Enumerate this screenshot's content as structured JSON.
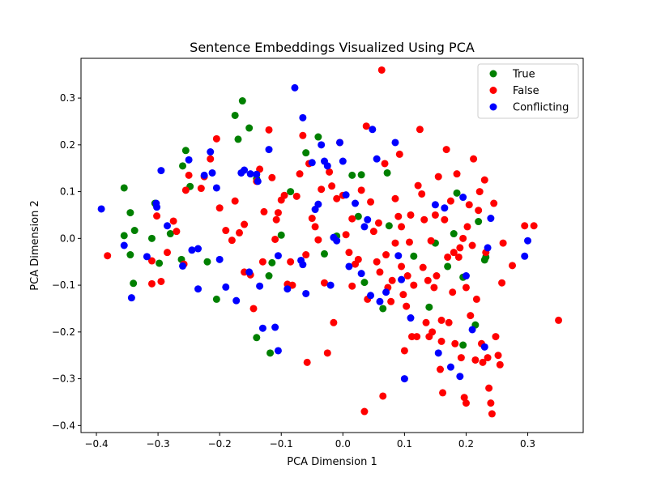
{
  "chart_data": {
    "type": "scatter",
    "title": "Sentence Embeddings Visualized Using PCA",
    "xlabel": "PCA Dimension 1",
    "ylabel": "PCA Dimension 2",
    "xlim": [
      -0.425,
      0.39
    ],
    "ylim": [
      -0.415,
      0.385
    ],
    "xticks": [
      -0.4,
      -0.3,
      -0.2,
      -0.1,
      0.0,
      0.1,
      0.2,
      0.3
    ],
    "yticks": [
      -0.4,
      -0.3,
      -0.2,
      -0.1,
      0.0,
      0.1,
      0.2,
      0.3
    ],
    "xtick_labels": [
      "−0.4",
      "−0.3",
      "−0.2",
      "−0.1",
      "0.0",
      "0.1",
      "0.2",
      "0.3"
    ],
    "ytick_labels": [
      "−0.4",
      "−0.3",
      "−0.2",
      "−0.1",
      "0.0",
      "0.1",
      "0.2",
      "0.3"
    ],
    "grid": false,
    "legend_position": "top-right",
    "series": [
      {
        "name": "True",
        "color": "#008000",
        "points": [
          [
            -0.355,
            0.108
          ],
          [
            -0.345,
            -0.035
          ],
          [
            -0.338,
            0.017
          ],
          [
            -0.34,
            -0.096
          ],
          [
            -0.345,
            0.055
          ],
          [
            -0.355,
            0.006
          ],
          [
            -0.31,
            0.0
          ],
          [
            -0.305,
            0.075
          ],
          [
            -0.298,
            -0.053
          ],
          [
            -0.28,
            0.01
          ],
          [
            -0.262,
            -0.045
          ],
          [
            -0.255,
            0.188
          ],
          [
            -0.248,
            0.111
          ],
          [
            -0.26,
            0.155
          ],
          [
            -0.22,
            -0.05
          ],
          [
            -0.205,
            -0.13
          ],
          [
            -0.175,
            0.263
          ],
          [
            -0.17,
            0.212
          ],
          [
            -0.163,
            0.294
          ],
          [
            -0.152,
            0.236
          ],
          [
            -0.14,
            0.128
          ],
          [
            -0.14,
            -0.212
          ],
          [
            -0.118,
            -0.245
          ],
          [
            -0.12,
            -0.08
          ],
          [
            -0.115,
            -0.052
          ],
          [
            -0.1,
            0.007
          ],
          [
            -0.085,
            0.1
          ],
          [
            -0.06,
            0.183
          ],
          [
            -0.04,
            0.217
          ],
          [
            -0.03,
            -0.033
          ],
          [
            -0.01,
            0.005
          ],
          [
            0.015,
            0.135
          ],
          [
            0.025,
            0.047
          ],
          [
            0.03,
            0.136
          ],
          [
            0.035,
            -0.094
          ],
          [
            0.065,
            -0.15
          ],
          [
            0.072,
            0.14
          ],
          [
            0.075,
            0.027
          ],
          [
            0.115,
            -0.038
          ],
          [
            0.14,
            -0.147
          ],
          [
            0.15,
            -0.01
          ],
          [
            0.17,
            -0.06
          ],
          [
            0.18,
            0.01
          ],
          [
            0.185,
            0.097
          ],
          [
            0.195,
            -0.083
          ],
          [
            0.195,
            -0.228
          ],
          [
            0.215,
            -0.185
          ],
          [
            0.22,
            0.036
          ],
          [
            0.232,
            -0.04
          ],
          [
            0.23,
            -0.046
          ]
        ]
      },
      {
        "name": "False",
        "color": "#ff0000",
        "points": [
          [
            -0.382,
            -0.037
          ],
          [
            -0.31,
            -0.097
          ],
          [
            -0.31,
            -0.048
          ],
          [
            -0.302,
            0.048
          ],
          [
            -0.295,
            -0.092
          ],
          [
            -0.285,
            -0.03
          ],
          [
            -0.275,
            0.037
          ],
          [
            -0.27,
            0.015
          ],
          [
            -0.258,
            -0.055
          ],
          [
            -0.255,
            0.103
          ],
          [
            -0.25,
            0.135
          ],
          [
            -0.23,
            0.107
          ],
          [
            -0.225,
            0.132
          ],
          [
            -0.215,
            0.17
          ],
          [
            -0.205,
            0.213
          ],
          [
            -0.2,
            0.065
          ],
          [
            -0.19,
            0.017
          ],
          [
            -0.18,
            -0.004
          ],
          [
            -0.175,
            0.08
          ],
          [
            -0.168,
            0.012
          ],
          [
            -0.16,
            0.03
          ],
          [
            -0.16,
            -0.072
          ],
          [
            -0.15,
            -0.078
          ],
          [
            -0.145,
            -0.15
          ],
          [
            -0.14,
            0.122
          ],
          [
            -0.135,
            0.148
          ],
          [
            -0.13,
            -0.05
          ],
          [
            -0.128,
            0.057
          ],
          [
            -0.12,
            0.232
          ],
          [
            -0.115,
            0.13
          ],
          [
            -0.11,
            -0.002
          ],
          [
            -0.108,
            0.04
          ],
          [
            -0.105,
            0.055
          ],
          [
            -0.1,
            0.082
          ],
          [
            -0.095,
            0.092
          ],
          [
            -0.09,
            -0.098
          ],
          [
            -0.085,
            -0.05
          ],
          [
            -0.082,
            -0.1
          ],
          [
            -0.075,
            0.09
          ],
          [
            -0.07,
            0.138
          ],
          [
            -0.065,
            0.22
          ],
          [
            -0.06,
            -0.035
          ],
          [
            -0.058,
            -0.265
          ],
          [
            -0.055,
            0.16
          ],
          [
            -0.05,
            0.043
          ],
          [
            -0.045,
            0.025
          ],
          [
            -0.04,
            -0.003
          ],
          [
            -0.035,
            0.105
          ],
          [
            -0.03,
            -0.095
          ],
          [
            -0.025,
            -0.245
          ],
          [
            -0.022,
            0.142
          ],
          [
            -0.018,
            0.112
          ],
          [
            -0.015,
            -0.18
          ],
          [
            -0.01,
            0.085
          ],
          [
            -0.005,
            0.205
          ],
          [
            0.0,
            0.092
          ],
          [
            0.005,
            0.008
          ],
          [
            0.01,
            -0.03
          ],
          [
            0.015,
            -0.102
          ],
          [
            0.015,
            0.042
          ],
          [
            0.02,
            -0.055
          ],
          [
            0.025,
            -0.045
          ],
          [
            0.03,
            0.103
          ],
          [
            0.035,
            -0.37
          ],
          [
            0.038,
            0.24
          ],
          [
            0.04,
            -0.13
          ],
          [
            0.045,
            0.078
          ],
          [
            0.05,
            0.015
          ],
          [
            0.055,
            -0.05
          ],
          [
            0.058,
            0.033
          ],
          [
            0.06,
            -0.072
          ],
          [
            0.063,
            0.36
          ],
          [
            0.065,
            -0.337
          ],
          [
            0.068,
            0.16
          ],
          [
            0.07,
            -0.035
          ],
          [
            0.073,
            -0.105
          ],
          [
            0.078,
            -0.135
          ],
          [
            0.08,
            -0.09
          ],
          [
            0.085,
            -0.01
          ],
          [
            0.085,
            0.085
          ],
          [
            0.09,
            0.047
          ],
          [
            0.092,
            0.18
          ],
          [
            0.095,
            -0.06
          ],
          [
            0.095,
            0.025
          ],
          [
            0.098,
            -0.12
          ],
          [
            0.1,
            -0.24
          ],
          [
            0.103,
            -0.145
          ],
          [
            0.105,
            -0.08
          ],
          [
            0.108,
            -0.008
          ],
          [
            0.11,
            0.05
          ],
          [
            0.112,
            -0.21
          ],
          [
            0.115,
            -0.1
          ],
          [
            0.12,
            -0.21
          ],
          [
            0.122,
            0.113
          ],
          [
            0.125,
            0.233
          ],
          [
            0.128,
            0.095
          ],
          [
            0.13,
            -0.062
          ],
          [
            0.132,
            0.04
          ],
          [
            0.135,
            -0.18
          ],
          [
            0.138,
            -0.09
          ],
          [
            0.14,
            -0.21
          ],
          [
            0.143,
            -0.005
          ],
          [
            0.145,
            -0.2
          ],
          [
            0.148,
            -0.105
          ],
          [
            0.15,
            0.05
          ],
          [
            0.152,
            -0.08
          ],
          [
            0.155,
            0.132
          ],
          [
            0.158,
            -0.28
          ],
          [
            0.16,
            -0.175
          ],
          [
            0.16,
            -0.22
          ],
          [
            0.162,
            -0.33
          ],
          [
            0.165,
            0.04
          ],
          [
            0.168,
            0.19
          ],
          [
            0.17,
            -0.04
          ],
          [
            0.172,
            -0.18
          ],
          [
            0.175,
            0.08
          ],
          [
            0.178,
            -0.115
          ],
          [
            0.18,
            -0.03
          ],
          [
            0.182,
            -0.225
          ],
          [
            0.185,
            0.138
          ],
          [
            0.188,
            -0.04
          ],
          [
            0.19,
            -0.02
          ],
          [
            0.192,
            -0.255
          ],
          [
            0.195,
            0.0
          ],
          [
            0.197,
            -0.34
          ],
          [
            0.2,
            -0.105
          ],
          [
            0.2,
            -0.352
          ],
          [
            0.202,
            0.025
          ],
          [
            0.205,
            0.072
          ],
          [
            0.207,
            -0.165
          ],
          [
            0.21,
            -0.015
          ],
          [
            0.212,
            0.17
          ],
          [
            0.215,
            -0.26
          ],
          [
            0.217,
            -0.13
          ],
          [
            0.22,
            0.06
          ],
          [
            0.222,
            0.1
          ],
          [
            0.225,
            -0.225
          ],
          [
            0.227,
            -0.265
          ],
          [
            0.23,
            0.125
          ],
          [
            0.232,
            -0.03
          ],
          [
            0.235,
            -0.255
          ],
          [
            0.237,
            -0.32
          ],
          [
            0.24,
            -0.352
          ],
          [
            0.242,
            -0.375
          ],
          [
            0.245,
            0.075
          ],
          [
            0.248,
            -0.21
          ],
          [
            0.252,
            -0.25
          ],
          [
            0.255,
            -0.27
          ],
          [
            0.258,
            -0.095
          ],
          [
            0.26,
            -0.01
          ],
          [
            0.275,
            -0.058
          ],
          [
            0.295,
            0.027
          ],
          [
            0.31,
            0.027
          ],
          [
            0.35,
            -0.175
          ]
        ]
      },
      {
        "name": "Conflicting",
        "color": "#0000ff",
        "points": [
          [
            -0.392,
            0.063
          ],
          [
            -0.355,
            -0.015
          ],
          [
            -0.343,
            -0.127
          ],
          [
            -0.318,
            -0.039
          ],
          [
            -0.303,
            0.075
          ],
          [
            -0.302,
            0.067
          ],
          [
            -0.295,
            0.145
          ],
          [
            -0.285,
            0.027
          ],
          [
            -0.26,
            -0.059
          ],
          [
            -0.25,
            0.168
          ],
          [
            -0.245,
            -0.025
          ],
          [
            -0.235,
            -0.108
          ],
          [
            -0.235,
            -0.022
          ],
          [
            -0.225,
            0.135
          ],
          [
            -0.215,
            0.185
          ],
          [
            -0.212,
            0.14
          ],
          [
            -0.205,
            0.108
          ],
          [
            -0.2,
            -0.045
          ],
          [
            -0.19,
            -0.104
          ],
          [
            -0.173,
            -0.133
          ],
          [
            -0.165,
            0.14
          ],
          [
            -0.16,
            0.146
          ],
          [
            -0.152,
            -0.072
          ],
          [
            -0.15,
            0.138
          ],
          [
            -0.14,
            0.137
          ],
          [
            -0.138,
            0.122
          ],
          [
            -0.135,
            -0.102
          ],
          [
            -0.13,
            -0.192
          ],
          [
            -0.12,
            0.19
          ],
          [
            -0.11,
            -0.19
          ],
          [
            -0.105,
            -0.24
          ],
          [
            -0.105,
            -0.037
          ],
          [
            -0.09,
            -0.108
          ],
          [
            -0.078,
            0.322
          ],
          [
            -0.068,
            -0.047
          ],
          [
            -0.065,
            -0.056
          ],
          [
            -0.065,
            0.258
          ],
          [
            -0.06,
            -0.118
          ],
          [
            -0.05,
            0.162
          ],
          [
            -0.045,
            0.062
          ],
          [
            -0.04,
            0.073
          ],
          [
            -0.035,
            0.2
          ],
          [
            -0.03,
            0.165
          ],
          [
            -0.025,
            0.155
          ],
          [
            -0.02,
            -0.1
          ],
          [
            -0.015,
            0.002
          ],
          [
            -0.01,
            -0.005
          ],
          [
            -0.005,
            0.205
          ],
          [
            0.0,
            0.165
          ],
          [
            0.005,
            0.093
          ],
          [
            0.01,
            -0.06
          ],
          [
            0.02,
            0.075
          ],
          [
            0.03,
            -0.075
          ],
          [
            0.035,
            0.025
          ],
          [
            0.04,
            0.04
          ],
          [
            0.045,
            -0.122
          ],
          [
            0.048,
            0.233
          ],
          [
            0.055,
            0.17
          ],
          [
            0.06,
            -0.135
          ],
          [
            0.07,
            -0.115
          ],
          [
            0.085,
            0.205
          ],
          [
            0.09,
            -0.037
          ],
          [
            0.095,
            -0.088
          ],
          [
            0.1,
            -0.3
          ],
          [
            0.11,
            -0.17
          ],
          [
            0.15,
            0.072
          ],
          [
            0.155,
            -0.245
          ],
          [
            0.165,
            0.065
          ],
          [
            0.175,
            -0.275
          ],
          [
            0.19,
            -0.295
          ],
          [
            0.195,
            0.088
          ],
          [
            0.2,
            -0.08
          ],
          [
            0.21,
            -0.195
          ],
          [
            0.23,
            -0.232
          ],
          [
            0.235,
            -0.02
          ],
          [
            0.24,
            0.043
          ],
          [
            0.295,
            -0.038
          ],
          [
            0.3,
            -0.005
          ]
        ]
      }
    ]
  }
}
